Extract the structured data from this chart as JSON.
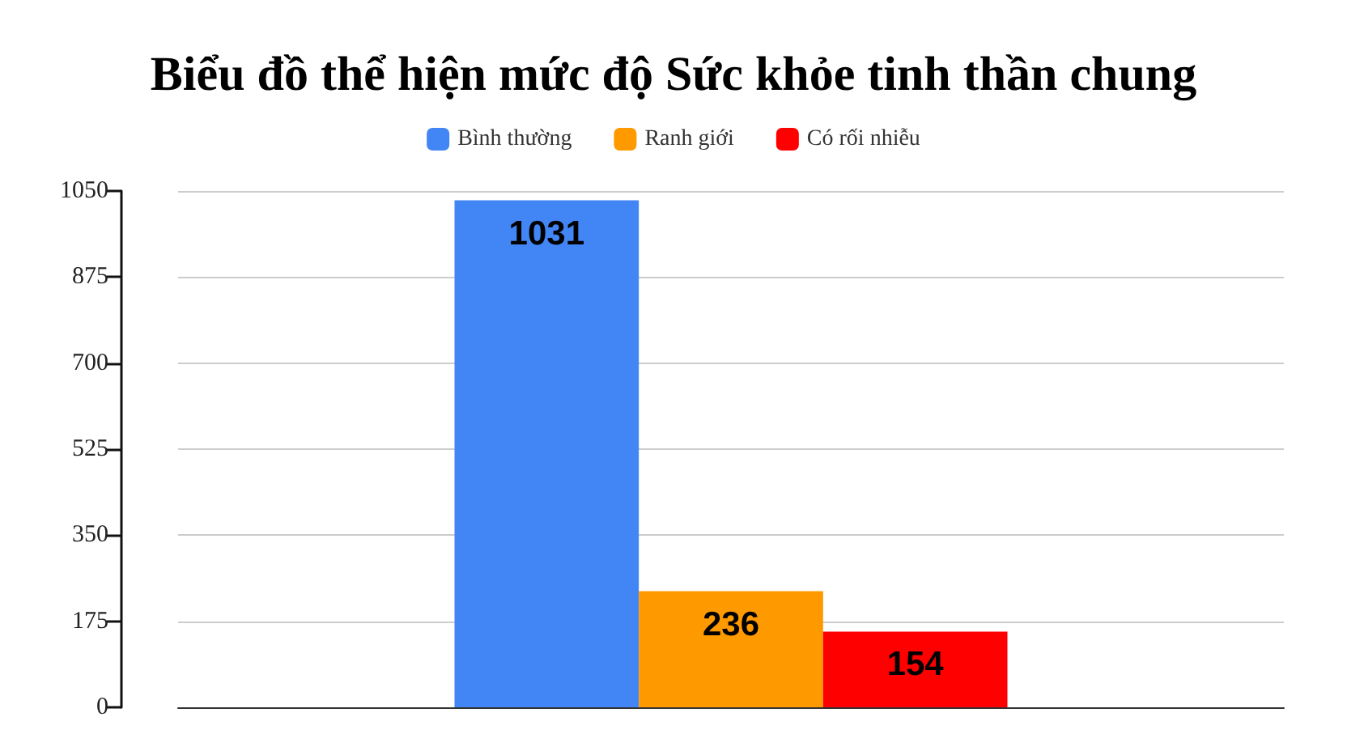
{
  "chart_data": {
    "type": "bar",
    "title": "Biểu đồ thể hiện mức độ Sức khỏe tinh thần chung",
    "categories": [
      null
    ],
    "series": [
      {
        "name": "Bình thường",
        "color": "#4285f4",
        "values": [
          1031
        ]
      },
      {
        "name": "Ranh giới",
        "color": "#ff9900",
        "values": [
          236
        ]
      },
      {
        "name": "Có rối nhiễu",
        "color": "#ff0000",
        "values": [
          154
        ]
      }
    ],
    "ylim": [
      0,
      1050
    ],
    "yticks": [
      0,
      175,
      350,
      525,
      700,
      875,
      1050
    ],
    "grid": "y",
    "legend": "top",
    "data_labels": true
  }
}
